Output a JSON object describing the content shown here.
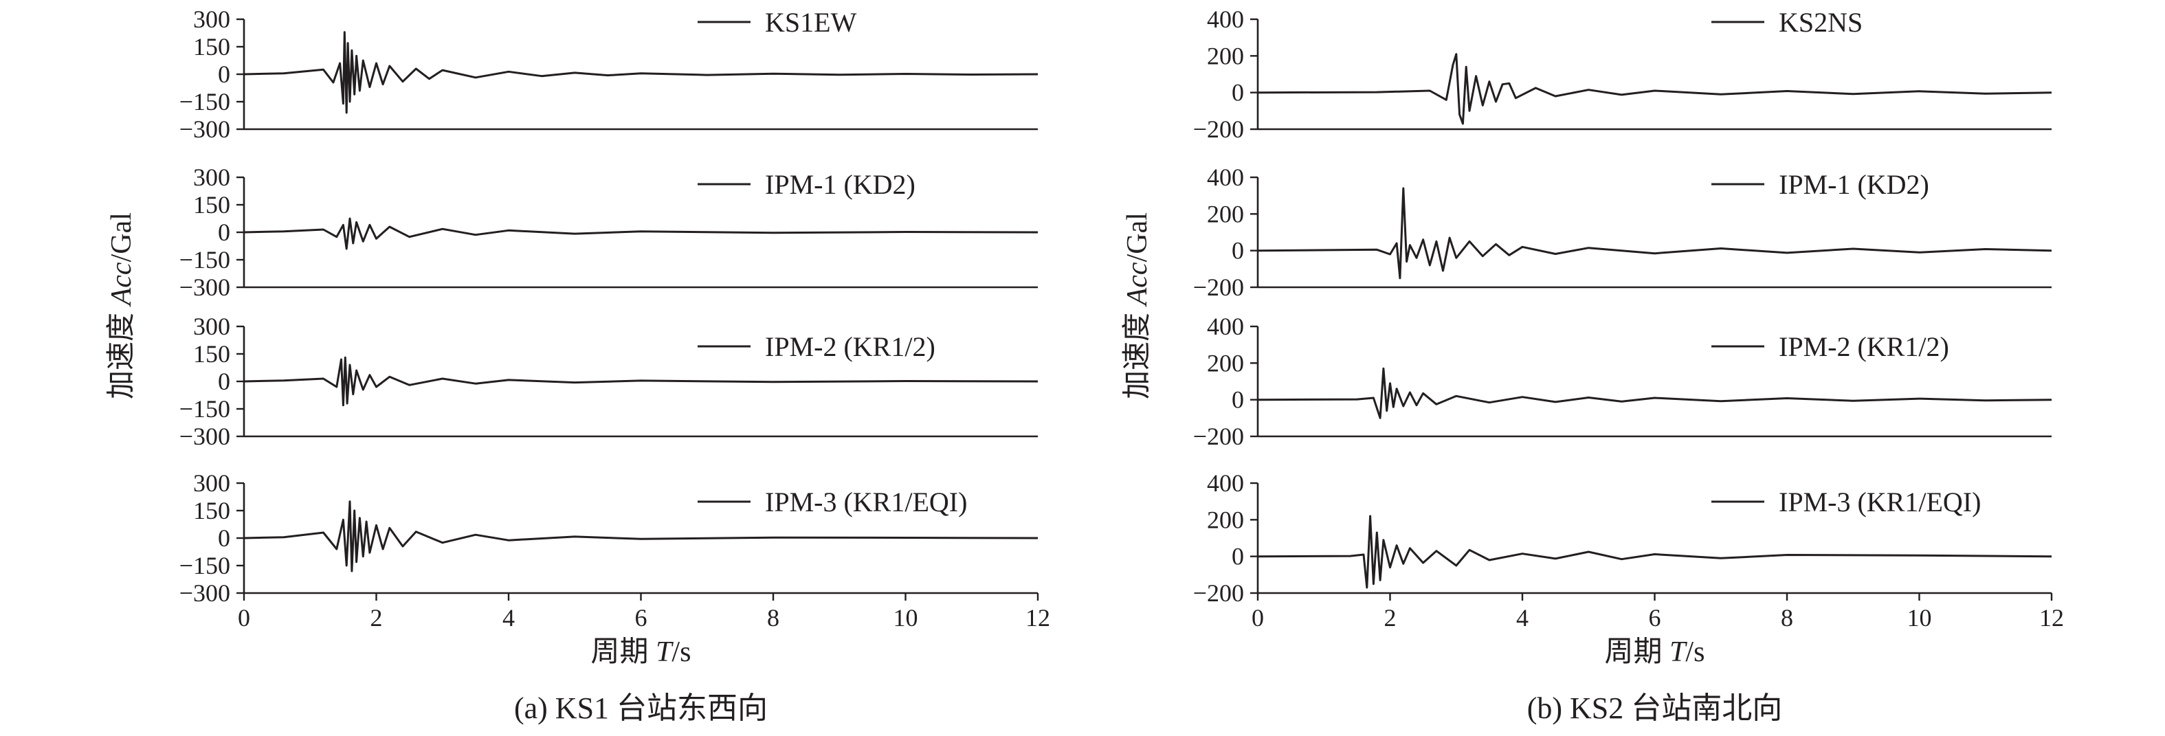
{
  "chart_data": [
    {
      "type": "line",
      "caption": "(a) KS1 台站东西向",
      "xlabel_prefix": "周期 ",
      "xlabel_var": "T",
      "xlabel_unit": "/s",
      "ylabel_prefix": "加速度 ",
      "ylabel_var": "Acc",
      "ylabel_unit": "/Gal",
      "xlim": [
        0,
        12
      ],
      "x_ticks": [
        0,
        2,
        4,
        6,
        8,
        10,
        12
      ],
      "x_tick_labels": [
        "0",
        "2",
        "4",
        "6",
        "8",
        "10",
        "12"
      ],
      "panels": [
        {
          "legend": "KS1EW",
          "ylim": [
            -300,
            300
          ],
          "y_ticks": [
            300,
            150,
            0,
            -150,
            -300
          ],
          "y_tick_labels": [
            "300",
            "150",
            "0",
            "−150",
            "−300"
          ],
          "series": {
            "name": "KS1EW",
            "x": [
              0,
              0.6,
              1.2,
              1.35,
              1.45,
              1.5,
              1.52,
              1.55,
              1.57,
              1.6,
              1.63,
              1.67,
              1.7,
              1.75,
              1.8,
              1.9,
              2.0,
              2.1,
              2.2,
              2.4,
              2.6,
              2.8,
              3.0,
              3.5,
              4.0,
              4.5,
              5.0,
              5.5,
              6.0,
              7.0,
              8.0,
              9.0,
              10.0,
              11.0,
              12.0
            ],
            "y": [
              0,
              5,
              25,
              -45,
              60,
              -160,
              230,
              -210,
              170,
              -150,
              130,
              -110,
              100,
              -90,
              75,
              -70,
              60,
              -55,
              45,
              -40,
              30,
              -25,
              22,
              -18,
              14,
              -10,
              8,
              -6,
              5,
              -4,
              3,
              -3,
              2,
              -2,
              0
            ]
          }
        },
        {
          "legend": "IPM-1 (KD2)",
          "ylim": [
            -300,
            300
          ],
          "y_ticks": [
            300,
            150,
            0,
            -150,
            -300
          ],
          "y_tick_labels": [
            "300",
            "150",
            "0",
            "−150",
            "−300"
          ],
          "series": {
            "name": "IPM-1 (KD2)",
            "x": [
              0,
              0.6,
              1.2,
              1.4,
              1.5,
              1.55,
              1.6,
              1.65,
              1.7,
              1.8,
              1.9,
              2.0,
              2.2,
              2.5,
              3.0,
              3.5,
              4.0,
              5.0,
              6.0,
              8.0,
              10.0,
              12.0
            ],
            "y": [
              0,
              5,
              15,
              -25,
              40,
              -90,
              75,
              -60,
              55,
              -50,
              40,
              -35,
              30,
              -25,
              18,
              -14,
              10,
              -8,
              5,
              -3,
              2,
              0
            ]
          }
        },
        {
          "legend": "IPM-2 (KR1/2)",
          "ylim": [
            -300,
            300
          ],
          "y_ticks": [
            300,
            150,
            0,
            -150,
            -300
          ],
          "y_tick_labels": [
            "300",
            "150",
            "0",
            "−150",
            "−300"
          ],
          "series": {
            "name": "IPM-2 (KR1/2)",
            "x": [
              0,
              0.6,
              1.2,
              1.4,
              1.47,
              1.5,
              1.53,
              1.56,
              1.6,
              1.65,
              1.7,
              1.8,
              1.9,
              2.0,
              2.2,
              2.5,
              3.0,
              3.5,
              4.0,
              5.0,
              6.0,
              8.0,
              10.0,
              12.0
            ],
            "y": [
              0,
              5,
              15,
              -30,
              120,
              -130,
              130,
              -120,
              90,
              -70,
              60,
              -45,
              35,
              -30,
              25,
              -20,
              15,
              -12,
              8,
              -6,
              4,
              -3,
              2,
              0
            ]
          }
        },
        {
          "legend": "IPM-3 (KR1/EQI)",
          "ylim": [
            -300,
            300
          ],
          "y_ticks": [
            300,
            150,
            0,
            -150,
            -300
          ],
          "y_tick_labels": [
            "300",
            "150",
            "0",
            "−150",
            "−300"
          ],
          "series": {
            "name": "IPM-3 (KR1/EQI)",
            "x": [
              0,
              0.6,
              1.2,
              1.4,
              1.5,
              1.55,
              1.6,
              1.63,
              1.67,
              1.7,
              1.75,
              1.8,
              1.85,
              1.9,
              2.0,
              2.1,
              2.2,
              2.4,
              2.6,
              3.0,
              3.5,
              4.0,
              5.0,
              6.0,
              8.0,
              10.0,
              12.0
            ],
            "y": [
              0,
              5,
              30,
              -60,
              100,
              -150,
              200,
              -180,
              150,
              -130,
              110,
              -100,
              90,
              -80,
              70,
              -60,
              55,
              -45,
              35,
              -25,
              18,
              -12,
              8,
              -5,
              3,
              2,
              0
            ]
          }
        }
      ]
    },
    {
      "type": "line",
      "caption": "(b) KS2 台站南北向",
      "xlabel_prefix": "周期 ",
      "xlabel_var": "T",
      "xlabel_unit": "/s",
      "ylabel_prefix": "加速度 ",
      "ylabel_var": "Acc",
      "ylabel_unit": "/Gal",
      "xlim": [
        0,
        12
      ],
      "x_ticks": [
        0,
        2,
        4,
        6,
        8,
        10,
        12
      ],
      "x_tick_labels": [
        "0",
        "2",
        "4",
        "6",
        "8",
        "10",
        "12"
      ],
      "panels": [
        {
          "legend": "KS2NS",
          "ylim": [
            -200,
            400
          ],
          "y_ticks": [
            400,
            200,
            0,
            -200
          ],
          "y_tick_labels": [
            "400",
            "200",
            "0",
            "−200"
          ],
          "series": {
            "name": "KS2NS",
            "x": [
              0,
              1.8,
              2.6,
              2.85,
              2.95,
              3.0,
              3.05,
              3.1,
              3.15,
              3.2,
              3.3,
              3.4,
              3.5,
              3.6,
              3.7,
              3.8,
              3.9,
              4.2,
              4.5,
              5.0,
              5.5,
              6.0,
              7.0,
              8.0,
              9.0,
              10.0,
              11.0,
              12.0
            ],
            "y": [
              0,
              2,
              10,
              -40,
              150,
              210,
              -120,
              -170,
              140,
              -100,
              90,
              -70,
              60,
              -50,
              45,
              50,
              -30,
              25,
              -20,
              15,
              -12,
              10,
              -10,
              8,
              -8,
              7,
              -6,
              0
            ]
          }
        },
        {
          "legend": "IPM-1 (KD2)",
          "ylim": [
            -200,
            400
          ],
          "y_ticks": [
            400,
            200,
            0,
            -200
          ],
          "y_tick_labels": [
            "400",
            "200",
            "0",
            "−200"
          ],
          "series": {
            "name": "IPM-1 (KD2)",
            "x": [
              0,
              1.8,
              2.0,
              2.1,
              2.15,
              2.2,
              2.25,
              2.3,
              2.4,
              2.5,
              2.6,
              2.7,
              2.8,
              2.9,
              3.0,
              3.2,
              3.4,
              3.6,
              3.8,
              4.0,
              4.5,
              5.0,
              6.0,
              7.0,
              8.0,
              9.0,
              10.0,
              11.0,
              12.0
            ],
            "y": [
              0,
              5,
              -20,
              40,
              -150,
              340,
              -60,
              30,
              -40,
              60,
              -80,
              50,
              -110,
              70,
              -40,
              50,
              -30,
              35,
              -25,
              20,
              -18,
              15,
              -15,
              12,
              -12,
              10,
              -10,
              8,
              0
            ]
          }
        },
        {
          "legend": "IPM-2 (KR1/2)",
          "ylim": [
            -200,
            400
          ],
          "y_ticks": [
            400,
            200,
            0,
            -200
          ],
          "y_tick_labels": [
            "400",
            "200",
            "0",
            "−200"
          ],
          "series": {
            "name": "IPM-2 (KR1/2)",
            "x": [
              0,
              1.5,
              1.75,
              1.85,
              1.9,
              1.95,
              2.0,
              2.05,
              2.1,
              2.2,
              2.3,
              2.4,
              2.5,
              2.7,
              3.0,
              3.5,
              4.0,
              4.5,
              5.0,
              5.5,
              6.0,
              7.0,
              8.0,
              9.0,
              10.0,
              11.0,
              12.0
            ],
            "y": [
              0,
              2,
              10,
              -100,
              170,
              -60,
              90,
              -40,
              60,
              -35,
              40,
              -30,
              35,
              -25,
              20,
              -15,
              15,
              -12,
              12,
              -10,
              10,
              -8,
              8,
              -6,
              6,
              -4,
              0
            ]
          }
        },
        {
          "legend": "IPM-3 (KR1/EQI)",
          "ylim": [
            -200,
            400
          ],
          "y_ticks": [
            400,
            200,
            0,
            -200
          ],
          "y_tick_labels": [
            "400",
            "200",
            "0",
            "−200"
          ],
          "series": {
            "name": "IPM-3 (KR1/EQI)",
            "x": [
              0,
              1.4,
              1.6,
              1.65,
              1.7,
              1.75,
              1.8,
              1.85,
              1.9,
              2.0,
              2.1,
              2.2,
              2.3,
              2.5,
              2.7,
              3.0,
              3.2,
              3.5,
              4.0,
              4.5,
              5.0,
              5.5,
              6.0,
              7.0,
              8.0,
              10.0,
              12.0
            ],
            "y": [
              0,
              2,
              10,
              -170,
              220,
              -150,
              130,
              -130,
              90,
              -60,
              60,
              -40,
              45,
              -35,
              30,
              -50,
              35,
              -20,
              15,
              -12,
              25,
              -15,
              12,
              -10,
              8,
              5,
              0
            ]
          }
        }
      ]
    }
  ]
}
